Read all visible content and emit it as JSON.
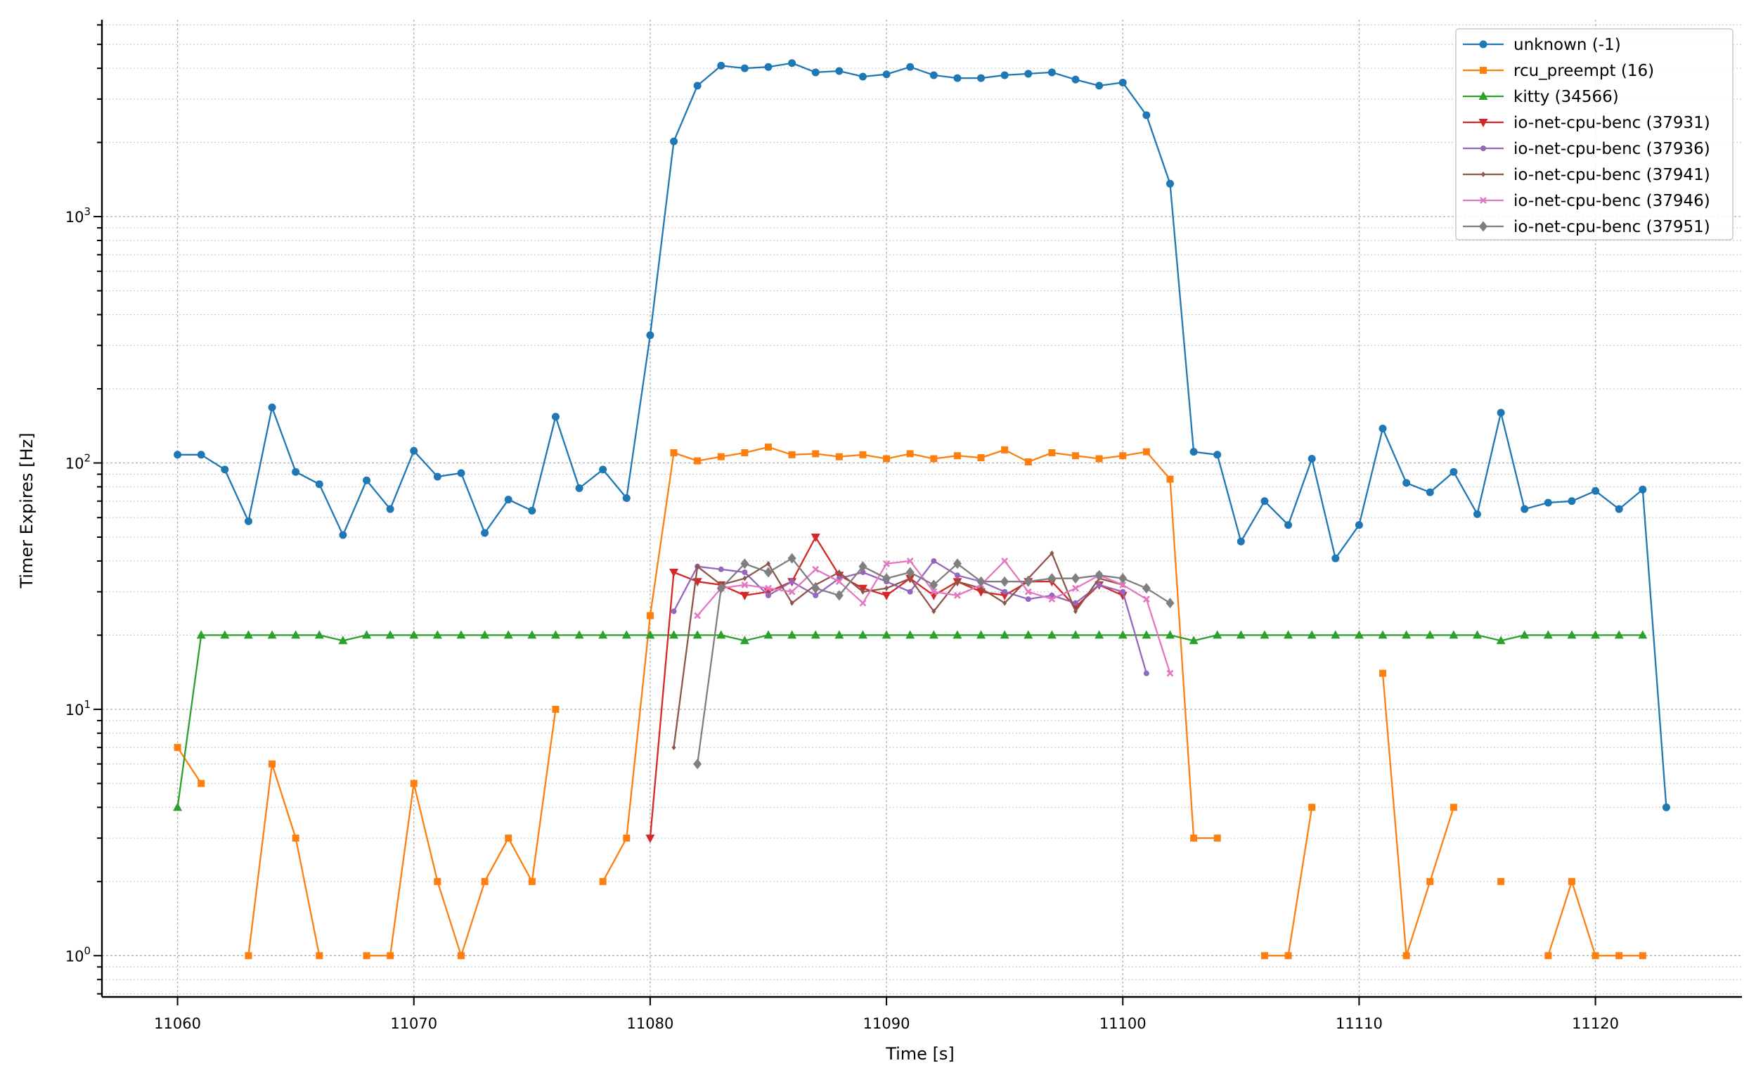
{
  "chart_data": {
    "type": "line",
    "title": "",
    "xlabel": "Time [s]",
    "ylabel": "Timer Expires [Hz]",
    "yscale": "log",
    "xlim": [
      11056.8,
      11126.2
    ],
    "ylim": [
      0.68,
      6300
    ],
    "grid": "on",
    "legend_position": "top-right",
    "x_ticks": [
      11060,
      11070,
      11080,
      11090,
      11100,
      11110,
      11120
    ],
    "x_tick_labels": [
      "11060",
      "11070",
      "11080",
      "11090",
      "11100",
      "11110",
      "11120"
    ],
    "y_ticks": [
      1,
      10,
      100,
      1000
    ],
    "y_tick_labels": [
      {
        "base": "10",
        "exp": "0"
      },
      {
        "base": "10",
        "exp": "1"
      },
      {
        "base": "10",
        "exp": "2"
      },
      {
        "base": "10",
        "exp": "3"
      }
    ],
    "series": [
      {
        "name": "unknown (-1)",
        "color": "#1f77b4",
        "marker": "circle",
        "points": [
          [
            11060,
            108
          ],
          [
            11061,
            108
          ],
          [
            11062,
            94
          ],
          [
            11063,
            58
          ],
          [
            11064,
            168
          ],
          [
            11065,
            92
          ],
          [
            11066,
            82
          ],
          [
            11067,
            51
          ],
          [
            11068,
            85
          ],
          [
            11069,
            65
          ],
          [
            11070,
            112
          ],
          [
            11071,
            88
          ],
          [
            11072,
            91
          ],
          [
            11073,
            52
          ],
          [
            11074,
            71
          ],
          [
            11075,
            64
          ],
          [
            11076,
            154
          ],
          [
            11077,
            79
          ],
          [
            11078,
            94
          ],
          [
            11079,
            72
          ],
          [
            11080,
            330
          ],
          [
            11081,
            2020
          ],
          [
            11082,
            3400
          ],
          [
            11083,
            4100
          ],
          [
            11084,
            4000
          ],
          [
            11085,
            4050
          ],
          [
            11086,
            4200
          ],
          [
            11087,
            3850
          ],
          [
            11088,
            3900
          ],
          [
            11089,
            3700
          ],
          [
            11090,
            3780
          ],
          [
            11091,
            4050
          ],
          [
            11092,
            3750
          ],
          [
            11093,
            3650
          ],
          [
            11094,
            3650
          ],
          [
            11095,
            3750
          ],
          [
            11096,
            3800
          ],
          [
            11097,
            3850
          ],
          [
            11098,
            3600
          ],
          [
            11099,
            3400
          ],
          [
            11100,
            3500
          ],
          [
            11101,
            2580
          ],
          [
            11102,
            1360
          ],
          [
            11103,
            111
          ],
          [
            11104,
            108
          ],
          [
            11105,
            48
          ],
          [
            11106,
            70
          ],
          [
            11107,
            56
          ],
          [
            11108,
            104
          ],
          [
            11109,
            41
          ],
          [
            11110,
            56
          ],
          [
            11111,
            138
          ],
          [
            11112,
            83
          ],
          [
            11113,
            76
          ],
          [
            11114,
            92
          ],
          [
            11115,
            62
          ],
          [
            11116,
            160
          ],
          [
            11117,
            65
          ],
          [
            11118,
            69
          ],
          [
            11119,
            70
          ],
          [
            11120,
            77
          ],
          [
            11121,
            65
          ],
          [
            11122,
            78
          ],
          [
            11123,
            4
          ]
        ]
      },
      {
        "name": "rcu_preempt (16)",
        "color": "#ff7f0e",
        "marker": "square",
        "points": [
          [
            11060,
            7
          ],
          [
            11061,
            5
          ],
          null,
          [
            11063,
            1
          ],
          [
            11064,
            6
          ],
          [
            11065,
            3
          ],
          [
            11066,
            1
          ],
          null,
          [
            11068,
            1
          ],
          [
            11069,
            1
          ],
          [
            11070,
            5
          ],
          [
            11071,
            2
          ],
          [
            11072,
            1
          ],
          [
            11073,
            2
          ],
          [
            11074,
            3
          ],
          [
            11075,
            2
          ],
          [
            11076,
            10
          ],
          null,
          [
            11078,
            2
          ],
          [
            11079,
            3
          ],
          [
            11080,
            24
          ],
          [
            11081,
            110
          ],
          [
            11082,
            102
          ],
          [
            11083,
            106
          ],
          [
            11084,
            110
          ],
          [
            11085,
            116
          ],
          [
            11086,
            108
          ],
          [
            11087,
            109
          ],
          [
            11088,
            106
          ],
          [
            11089,
            108
          ],
          [
            11090,
            104
          ],
          [
            11091,
            109
          ],
          [
            11092,
            104
          ],
          [
            11093,
            107
          ],
          [
            11094,
            105
          ],
          [
            11095,
            113
          ],
          [
            11096,
            101
          ],
          [
            11097,
            110
          ],
          [
            11098,
            107
          ],
          [
            11099,
            104
          ],
          [
            11100,
            107
          ],
          [
            11101,
            111
          ],
          [
            11102,
            86
          ],
          [
            11103,
            3
          ],
          [
            11104,
            3
          ],
          null,
          [
            11106,
            1
          ],
          [
            11107,
            1
          ],
          [
            11108,
            4
          ],
          null,
          [
            11111,
            14
          ],
          [
            11112,
            1
          ],
          [
            11113,
            2
          ],
          [
            11114,
            4
          ],
          null,
          [
            11116,
            2
          ],
          null,
          [
            11118,
            1
          ],
          [
            11119,
            2
          ],
          [
            11120,
            1
          ],
          [
            11121,
            1
          ],
          [
            11122,
            1
          ]
        ]
      },
      {
        "name": "kitty (34566)",
        "color": "#2ca02c",
        "marker": "triangle-up",
        "points": [
          [
            11060,
            4
          ],
          [
            11061,
            20
          ],
          [
            11062,
            20
          ],
          [
            11063,
            20
          ],
          [
            11064,
            20
          ],
          [
            11065,
            20
          ],
          [
            11066,
            20
          ],
          [
            11067,
            19
          ],
          [
            11068,
            20
          ],
          [
            11069,
            20
          ],
          [
            11070,
            20
          ],
          [
            11071,
            20
          ],
          [
            11072,
            20
          ],
          [
            11073,
            20
          ],
          [
            11074,
            20
          ],
          [
            11075,
            20
          ],
          [
            11076,
            20
          ],
          [
            11077,
            20
          ],
          [
            11078,
            20
          ],
          [
            11079,
            20
          ],
          [
            11080,
            20
          ],
          [
            11081,
            20
          ],
          [
            11082,
            20
          ],
          [
            11083,
            20
          ],
          [
            11084,
            19
          ],
          [
            11085,
            20
          ],
          [
            11086,
            20
          ],
          [
            11087,
            20
          ],
          [
            11088,
            20
          ],
          [
            11089,
            20
          ],
          [
            11090,
            20
          ],
          [
            11091,
            20
          ],
          [
            11092,
            20
          ],
          [
            11093,
            20
          ],
          [
            11094,
            20
          ],
          [
            11095,
            20
          ],
          [
            11096,
            20
          ],
          [
            11097,
            20
          ],
          [
            11098,
            20
          ],
          [
            11099,
            20
          ],
          [
            11100,
            20
          ],
          [
            11101,
            20
          ],
          [
            11102,
            20
          ],
          [
            11103,
            19
          ],
          [
            11104,
            20
          ],
          [
            11105,
            20
          ],
          [
            11106,
            20
          ],
          [
            11107,
            20
          ],
          [
            11108,
            20
          ],
          [
            11109,
            20
          ],
          [
            11110,
            20
          ],
          [
            11111,
            20
          ],
          [
            11112,
            20
          ],
          [
            11113,
            20
          ],
          [
            11114,
            20
          ],
          [
            11115,
            20
          ],
          [
            11116,
            19
          ],
          [
            11117,
            20
          ],
          [
            11118,
            20
          ],
          [
            11119,
            20
          ],
          [
            11120,
            20
          ],
          [
            11121,
            20
          ],
          [
            11122,
            20
          ]
        ]
      },
      {
        "name": "io-net-cpu-benc (37931)",
        "color": "#d62728",
        "marker": "triangle-down",
        "points": [
          [
            11080,
            3
          ],
          [
            11081,
            36
          ],
          [
            11082,
            33
          ],
          [
            11083,
            32
          ],
          [
            11084,
            29
          ],
          [
            11085,
            30
          ],
          [
            11086,
            33
          ],
          [
            11087,
            50
          ],
          [
            11088,
            35
          ],
          [
            11089,
            31
          ],
          [
            11090,
            29
          ],
          [
            11091,
            34
          ],
          [
            11092,
            29
          ],
          [
            11093,
            33
          ],
          [
            11094,
            30
          ],
          [
            11095,
            29
          ],
          [
            11096,
            33
          ],
          [
            11097,
            33
          ],
          [
            11098,
            26
          ],
          [
            11099,
            32
          ],
          [
            11100,
            29
          ]
        ]
      },
      {
        "name": "io-net-cpu-benc (37936)",
        "color": "#9467bd",
        "marker": "small-circle",
        "points": [
          [
            11081,
            25
          ],
          [
            11082,
            38
          ],
          [
            11083,
            37
          ],
          [
            11084,
            36
          ],
          [
            11085,
            29
          ],
          [
            11086,
            33
          ],
          [
            11087,
            29
          ],
          [
            11088,
            34
          ],
          [
            11089,
            36
          ],
          [
            11090,
            33
          ],
          [
            11091,
            30
          ],
          [
            11092,
            40
          ],
          [
            11093,
            35
          ],
          [
            11094,
            33
          ],
          [
            11095,
            30
          ],
          [
            11096,
            28
          ],
          [
            11097,
            29
          ],
          [
            11098,
            27
          ],
          [
            11099,
            32
          ],
          [
            11100,
            30
          ],
          [
            11101,
            14
          ]
        ]
      },
      {
        "name": "io-net-cpu-benc (37941)",
        "color": "#8c564b",
        "marker": "tiny-diamond",
        "points": [
          [
            11081,
            7
          ],
          [
            11082,
            38
          ],
          [
            11083,
            32
          ],
          [
            11084,
            34
          ],
          [
            11085,
            39
          ],
          [
            11086,
            27
          ],
          [
            11087,
            32
          ],
          [
            11088,
            36
          ],
          [
            11089,
            30
          ],
          [
            11090,
            31
          ],
          [
            11091,
            34
          ],
          [
            11092,
            25
          ],
          [
            11093,
            33
          ],
          [
            11094,
            31
          ],
          [
            11095,
            27
          ],
          [
            11096,
            34
          ],
          [
            11097,
            43
          ],
          [
            11098,
            25
          ],
          [
            11099,
            34
          ],
          [
            11100,
            32
          ]
        ]
      },
      {
        "name": "io-net-cpu-benc (37946)",
        "color": "#e377c2",
        "marker": "x",
        "points": [
          [
            11082,
            24
          ],
          [
            11083,
            31
          ],
          [
            11084,
            32
          ],
          [
            11085,
            31
          ],
          [
            11086,
            30
          ],
          [
            11087,
            37
          ],
          [
            11088,
            33
          ],
          [
            11089,
            27
          ],
          [
            11090,
            39
          ],
          [
            11091,
            40
          ],
          [
            11092,
            30
          ],
          [
            11093,
            29
          ],
          [
            11094,
            32
          ],
          [
            11095,
            40
          ],
          [
            11096,
            30
          ],
          [
            11097,
            28
          ],
          [
            11098,
            31
          ],
          [
            11099,
            35
          ],
          [
            11100,
            32
          ],
          [
            11101,
            28
          ],
          [
            11102,
            14
          ]
        ]
      },
      {
        "name": "io-net-cpu-benc (37951)",
        "color": "#7f7f7f",
        "marker": "diamond",
        "points": [
          [
            11082,
            6
          ],
          [
            11083,
            31
          ],
          [
            11084,
            39
          ],
          [
            11085,
            36
          ],
          [
            11086,
            41
          ],
          [
            11087,
            31
          ],
          [
            11088,
            29
          ],
          [
            11089,
            38
          ],
          [
            11090,
            34
          ],
          [
            11091,
            36
          ],
          [
            11092,
            32
          ],
          [
            11093,
            39
          ],
          [
            11094,
            33
          ],
          [
            11095,
            33
          ],
          [
            11096,
            33
          ],
          [
            11097,
            34
          ],
          [
            11098,
            34
          ],
          [
            11099,
            35
          ],
          [
            11100,
            34
          ],
          [
            11101,
            31
          ],
          [
            11102,
            27
          ]
        ]
      }
    ]
  }
}
